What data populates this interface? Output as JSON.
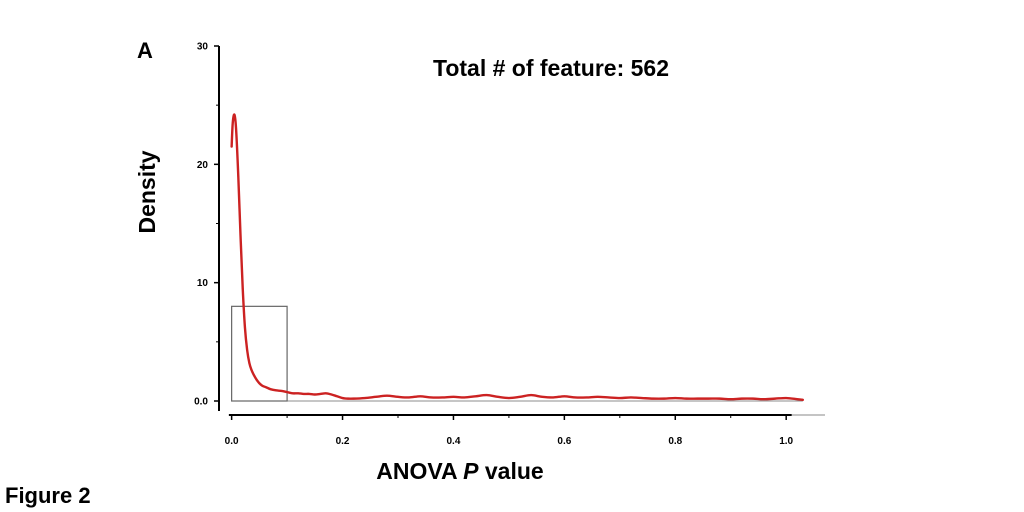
{
  "figure_label": "Figure 2",
  "chart_data": {
    "type": "line",
    "panel_label": "A",
    "title": "Total # of feature: 562",
    "xlabel_main": "ANOVA",
    "xlabel_italic": "P",
    "xlabel_rest": "value",
    "ylabel": "Density",
    "xlim": [
      -0.03,
      1.07
    ],
    "ylim": [
      0,
      30
    ],
    "x_ticks": [
      0.0,
      0.2,
      0.4,
      0.6,
      0.8,
      1.0
    ],
    "x_tick_labels": [
      "0.0",
      "0.2",
      "0.4",
      "0.6",
      "0.8",
      "1.0"
    ],
    "y_ticks": [
      0,
      10,
      20,
      30
    ],
    "y_tick_labels": [
      "0.0",
      "10",
      "20",
      "30"
    ],
    "y_minor_ticks": [
      5,
      15,
      25
    ],
    "series": [
      {
        "color": "#cc2222",
        "x": [
          0.0,
          0.002,
          0.005,
          0.008,
          0.012,
          0.016,
          0.02,
          0.024,
          0.028,
          0.032,
          0.036,
          0.04,
          0.045,
          0.05,
          0.055,
          0.06,
          0.065,
          0.07,
          0.08,
          0.09,
          0.1,
          0.11,
          0.12,
          0.13,
          0.14,
          0.15,
          0.16,
          0.17,
          0.18,
          0.19,
          0.2,
          0.21,
          0.22,
          0.24,
          0.26,
          0.28,
          0.3,
          0.32,
          0.34,
          0.36,
          0.38,
          0.4,
          0.42,
          0.44,
          0.46,
          0.48,
          0.5,
          0.52,
          0.54,
          0.56,
          0.58,
          0.6,
          0.62,
          0.64,
          0.66,
          0.68,
          0.7,
          0.72,
          0.74,
          0.76,
          0.78,
          0.8,
          0.82,
          0.84,
          0.86,
          0.88,
          0.9,
          0.92,
          0.94,
          0.96,
          0.98,
          1.0,
          1.02,
          1.03
        ],
        "y": [
          21.5,
          23.5,
          24.2,
          23.0,
          19.0,
          14.0,
          9.5,
          6.2,
          4.3,
          3.2,
          2.6,
          2.2,
          1.8,
          1.5,
          1.3,
          1.2,
          1.1,
          1.0,
          0.9,
          0.85,
          0.75,
          0.65,
          0.65,
          0.6,
          0.6,
          0.55,
          0.6,
          0.65,
          0.55,
          0.4,
          0.25,
          0.2,
          0.2,
          0.25,
          0.35,
          0.45,
          0.35,
          0.3,
          0.4,
          0.3,
          0.3,
          0.35,
          0.3,
          0.4,
          0.5,
          0.35,
          0.25,
          0.35,
          0.5,
          0.35,
          0.3,
          0.4,
          0.3,
          0.3,
          0.35,
          0.3,
          0.25,
          0.3,
          0.25,
          0.2,
          0.2,
          0.25,
          0.2,
          0.2,
          0.2,
          0.2,
          0.15,
          0.2,
          0.2,
          0.15,
          0.2,
          0.25,
          0.15,
          0.1
        ]
      }
    ],
    "highlight_box": {
      "x0": 0.0,
      "x1": 0.1,
      "y0": 0,
      "y1": 8,
      "color": "#666666"
    },
    "grid": false,
    "legend": "none"
  }
}
